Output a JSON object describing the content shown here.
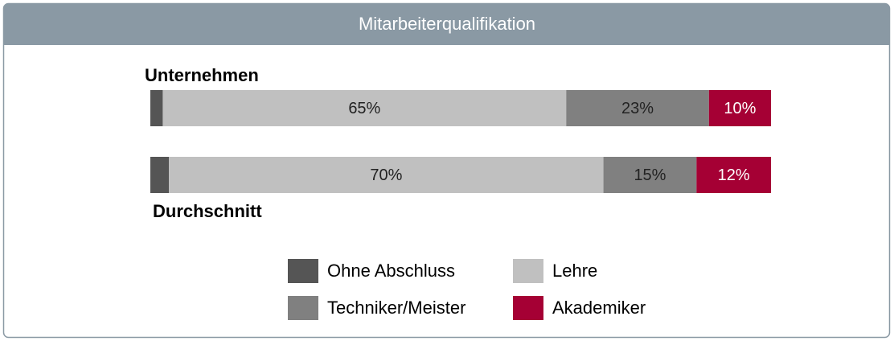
{
  "chart_data": {
    "type": "stacked_bar_horizontal",
    "title": "Mitarbeiterqualifikation",
    "categories": [
      "Unternehmen",
      "Durchschnitt"
    ],
    "series": [
      {
        "name": "Ohne Abschluss",
        "color": "#555555",
        "values": [
          2,
          3
        ],
        "value_labels": [
          "2%",
          "3%"
        ]
      },
      {
        "name": "Lehre",
        "color": "#c0c0c0",
        "values": [
          65,
          70
        ],
        "value_labels": [
          "65%",
          "70%"
        ]
      },
      {
        "name": "Techniker/Meister",
        "color": "#808080",
        "values": [
          23,
          15
        ],
        "value_labels": [
          "23%",
          "15%"
        ]
      },
      {
        "name": "Akademiker",
        "color": "#a50034",
        "values": [
          10,
          12
        ],
        "value_labels": [
          "10%",
          "12%"
        ]
      }
    ],
    "xlim": [
      0,
      100
    ]
  }
}
